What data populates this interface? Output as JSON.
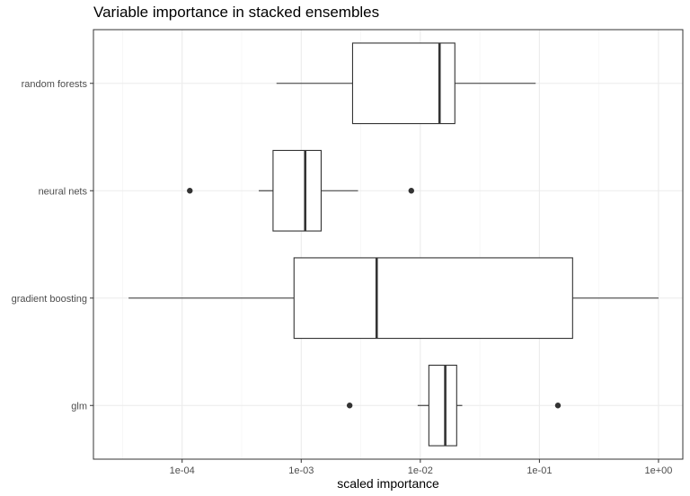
{
  "chart_data": {
    "type": "boxplot",
    "orientation": "horizontal",
    "title": "Variable importance in stacked ensembles",
    "xlabel": "scaled importance",
    "ylabel": "",
    "x_scale": "log10",
    "xlim": [
      1.8e-05,
      1.6
    ],
    "x_ticks": [
      0.0001,
      0.001,
      0.01,
      0.1,
      1
    ],
    "x_tick_labels": [
      "1e-04",
      "1e-03",
      "1e-02",
      "1e-01",
      "1e+00"
    ],
    "grid": true,
    "categories": [
      "random forests",
      "neural nets",
      "gradient boosting",
      "glm"
    ],
    "boxes": [
      {
        "category": "random forests",
        "whisker_low": 0.00062,
        "q1": 0.0027,
        "median": 0.0145,
        "q3": 0.0195,
        "whisker_high": 0.093,
        "outliers": []
      },
      {
        "category": "neural nets",
        "whisker_low": 0.00044,
        "q1": 0.00058,
        "median": 0.00108,
        "q3": 0.00147,
        "whisker_high": 0.003,
        "outliers": [
          0.000116,
          0.0084
        ]
      },
      {
        "category": "gradient boosting",
        "whisker_low": 3.55e-05,
        "q1": 0.00087,
        "median": 0.0043,
        "q3": 0.19,
        "whisker_high": 1.0,
        "outliers": []
      },
      {
        "category": "glm",
        "whisker_low": 0.0095,
        "q1": 0.0118,
        "median": 0.0162,
        "q3": 0.0202,
        "whisker_high": 0.0225,
        "outliers": [
          0.00255,
          0.143
        ]
      }
    ]
  }
}
